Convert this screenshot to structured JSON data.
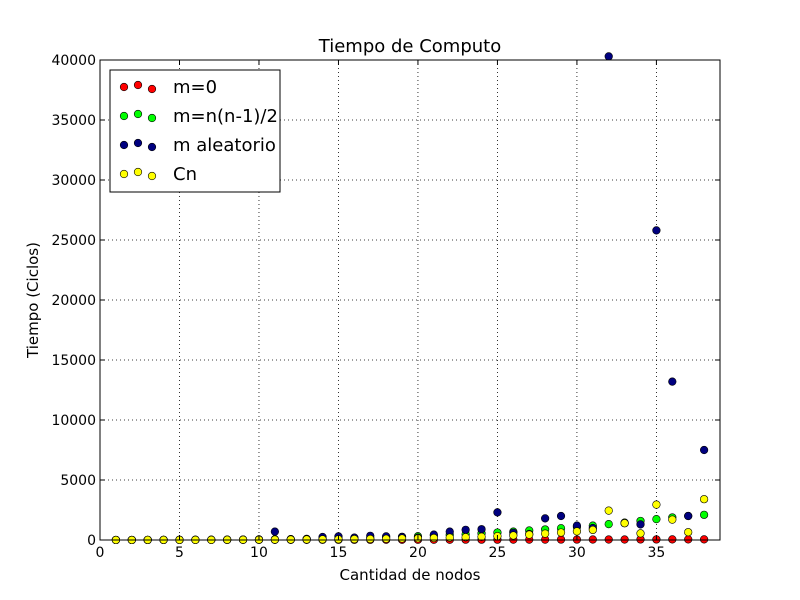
{
  "chart_data": {
    "type": "scatter",
    "title": "Tiempo de Computo",
    "xlabel": "Cantidad de nodos",
    "ylabel": "Tiempo (Ciclos)",
    "xlim": [
      0,
      39
    ],
    "ylim": [
      0,
      40000
    ],
    "xticks": [
      0,
      5,
      10,
      15,
      20,
      25,
      30,
      35
    ],
    "yticks": [
      0,
      5000,
      10000,
      15000,
      20000,
      25000,
      30000,
      35000,
      40000
    ],
    "grid": true,
    "legend_position": "top-left",
    "series": [
      {
        "name": "m=0",
        "color": "#ff0000",
        "x": [
          1,
          2,
          3,
          4,
          5,
          6,
          7,
          8,
          9,
          10,
          11,
          12,
          13,
          14,
          15,
          16,
          17,
          18,
          19,
          20,
          21,
          22,
          23,
          24,
          25,
          26,
          27,
          28,
          29,
          30,
          31,
          32,
          33,
          34,
          35,
          36,
          37,
          38
        ],
        "y": [
          5,
          5,
          6,
          6,
          7,
          8,
          8,
          9,
          10,
          10,
          11,
          12,
          13,
          14,
          15,
          16,
          17,
          18,
          19,
          20,
          22,
          23,
          24,
          26,
          28,
          30,
          32,
          34,
          36,
          38,
          40,
          42,
          44,
          46,
          48,
          50,
          52,
          55
        ]
      },
      {
        "name": "m=n(n-1)/2",
        "color": "#00ff00",
        "x": [
          1,
          2,
          3,
          4,
          5,
          6,
          7,
          8,
          9,
          10,
          11,
          12,
          13,
          14,
          15,
          16,
          17,
          18,
          19,
          20,
          21,
          22,
          23,
          24,
          25,
          26,
          27,
          28,
          29,
          30,
          31,
          32,
          33,
          34,
          35,
          36,
          37,
          38
        ],
        "y": [
          5,
          6,
          8,
          10,
          14,
          18,
          24,
          30,
          38,
          48,
          60,
          75,
          92,
          112,
          135,
          160,
          190,
          225,
          265,
          310,
          360,
          420,
          480,
          550,
          620,
          700,
          790,
          880,
          980,
          1090,
          1200,
          1320,
          1450,
          1590,
          1740,
          1880,
          2000,
          2100
        ]
      },
      {
        "name": "m aleatorio",
        "color": "#00007f",
        "x": [
          1,
          2,
          3,
          4,
          5,
          6,
          7,
          8,
          9,
          10,
          11,
          12,
          13,
          14,
          15,
          16,
          17,
          18,
          19,
          20,
          21,
          22,
          23,
          24,
          25,
          26,
          27,
          28,
          29,
          30,
          31,
          32,
          33,
          34,
          35,
          36,
          37,
          38
        ],
        "y": [
          5,
          6,
          7,
          9,
          12,
          15,
          20,
          25,
          30,
          40,
          700,
          60,
          80,
          250,
          300,
          200,
          350,
          300,
          250,
          200,
          450,
          700,
          850,
          900,
          2300,
          600,
          500,
          1800,
          2000,
          1200,
          1000,
          40300,
          1400,
          1300,
          25800,
          13200,
          2000,
          7500
        ]
      },
      {
        "name": "Cn",
        "color": "#ffff00",
        "x": [
          1,
          2,
          3,
          4,
          5,
          6,
          7,
          8,
          9,
          10,
          11,
          12,
          13,
          14,
          15,
          16,
          17,
          18,
          19,
          20,
          21,
          22,
          23,
          24,
          25,
          26,
          27,
          28,
          29,
          30,
          31,
          32,
          33,
          34,
          35,
          36,
          37,
          38
        ],
        "y": [
          5,
          5,
          6,
          7,
          9,
          11,
          13,
          16,
          20,
          25,
          30,
          35,
          42,
          50,
          60,
          70,
          85,
          100,
          120,
          140,
          165,
          195,
          230,
          270,
          320,
          380,
          450,
          530,
          620,
          720,
          840,
          2450,
          1400,
          550,
          2950,
          1700,
          650,
          3400
        ]
      }
    ]
  }
}
